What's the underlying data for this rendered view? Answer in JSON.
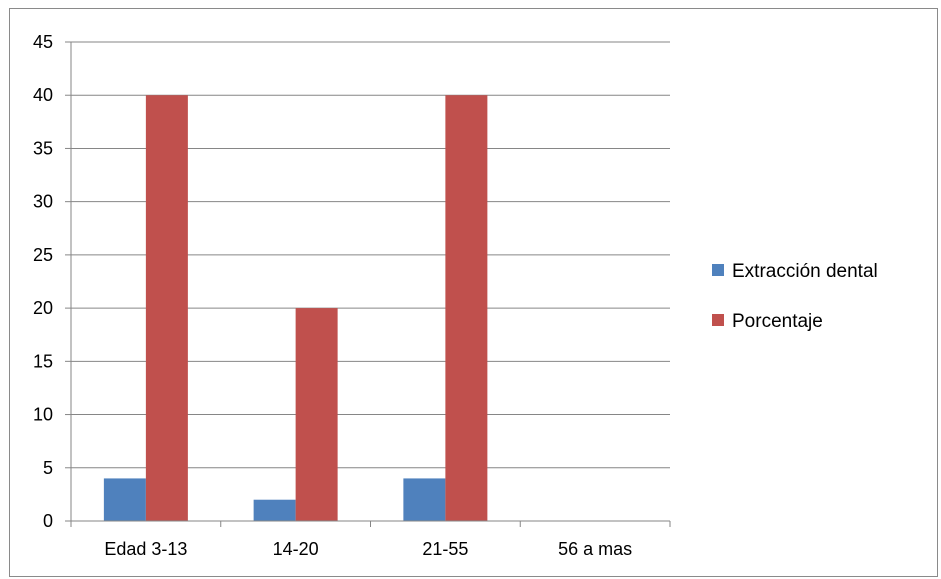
{
  "chart_data": {
    "type": "bar",
    "categories": [
      "Edad 3-13",
      "14-20",
      "21-55",
      "56 a mas"
    ],
    "series": [
      {
        "name": "Extracción dental",
        "values": [
          4,
          2,
          4,
          0
        ],
        "color": "#4F81BD"
      },
      {
        "name": "Porcentaje",
        "values": [
          40,
          20,
          40,
          0
        ],
        "color": "#C0504D"
      }
    ],
    "yticks": [
      "0",
      "5",
      "10",
      "15",
      "20",
      "25",
      "30",
      "35",
      "40",
      "45"
    ],
    "ylim": [
      0,
      45
    ],
    "grid": true,
    "legend_position": "right"
  }
}
